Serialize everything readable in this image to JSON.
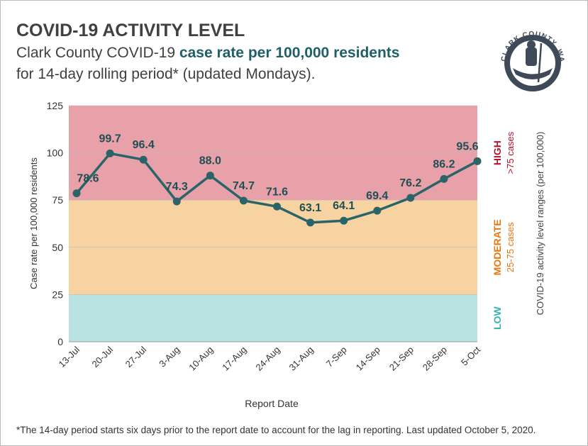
{
  "title": "COVID-19 ACTIVITY LEVEL",
  "subtitle_pre": "Clark County COVID-19 ",
  "subtitle_highlight": "case rate per 100,000 residents",
  "subtitle_line2": "for 14-day rolling period* (updated Mondays).",
  "logo_text": "CLARK COUNTY, WASHINGTON",
  "footnote": "*The 14-day period starts six days prior to the report date to account for the lag in reporting. Last updated October 5, 2020.",
  "chart_data": {
    "type": "line",
    "xlabel": "Report Date",
    "ylabel": "Case rate per 100,000 residents",
    "ylim": [
      0,
      125
    ],
    "yticks": [
      0,
      25,
      50,
      75,
      100,
      125
    ],
    "categories": [
      "13-Jul",
      "20-Jul",
      "27-Jul",
      "3-Aug",
      "10-Aug",
      "17-Aug",
      "24-Aug",
      "31-Aug",
      "7-Sep",
      "14-Sep",
      "21-Sep",
      "28-Sep",
      "5-Oct"
    ],
    "values": [
      78.6,
      99.7,
      96.4,
      74.3,
      88.0,
      74.7,
      71.6,
      63.1,
      64.1,
      69.4,
      76.2,
      86.2,
      95.6
    ],
    "data_labels": [
      "78.6",
      "99.7",
      "96.4",
      "74.3",
      "88.0",
      "74.7",
      "71.6",
      "63.1",
      "64.1",
      "69.4",
      "76.2",
      "86.2",
      "95.6"
    ],
    "line_color": "#2a6468",
    "bands": [
      {
        "name": "LOW",
        "range_label": "",
        "from": 0,
        "to": 25,
        "color": "#b9e3e2",
        "label_color": "#3bb0b0"
      },
      {
        "name": "MODERATE",
        "range_label": "25-75 cases",
        "from": 25,
        "to": 75,
        "color": "#f7d3a2",
        "label_color": "#e8770f"
      },
      {
        "name": "HIGH",
        "range_label": ">75 cases",
        "from": 75,
        "to": 125,
        "color": "#e8a1a9",
        "label_color": "#b5122b"
      }
    ],
    "side_label": "COVID-19  activity level ranges (per 100,000)"
  }
}
